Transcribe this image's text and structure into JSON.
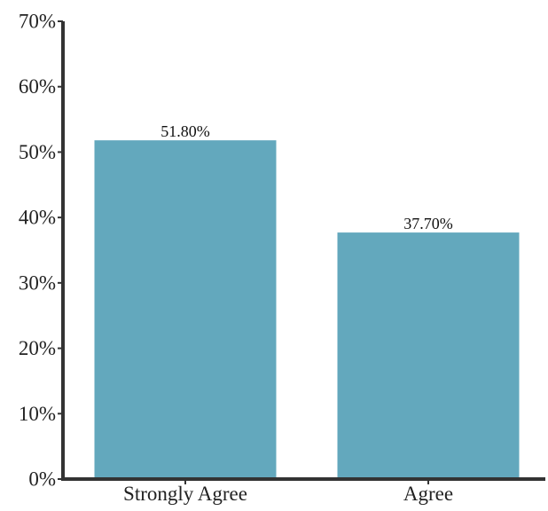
{
  "chart_data": {
    "type": "bar",
    "title": "",
    "xlabel": "",
    "ylabel": "",
    "categories": [
      "Strongly Agree",
      "Agree"
    ],
    "values": [
      51.8,
      37.7
    ],
    "data_labels": [
      "51.80%",
      "37.70%"
    ],
    "y_ticks": [
      0,
      10,
      20,
      30,
      40,
      50,
      60,
      70
    ],
    "y_tick_labels": [
      "0%",
      "10%",
      "20%",
      "30%",
      "40%",
      "50%",
      "60%",
      "70%"
    ],
    "ylim": [
      0,
      70
    ],
    "grid": false,
    "legend": "none",
    "colors": {
      "bar": "#63a8bd",
      "axis": "#333333"
    }
  }
}
